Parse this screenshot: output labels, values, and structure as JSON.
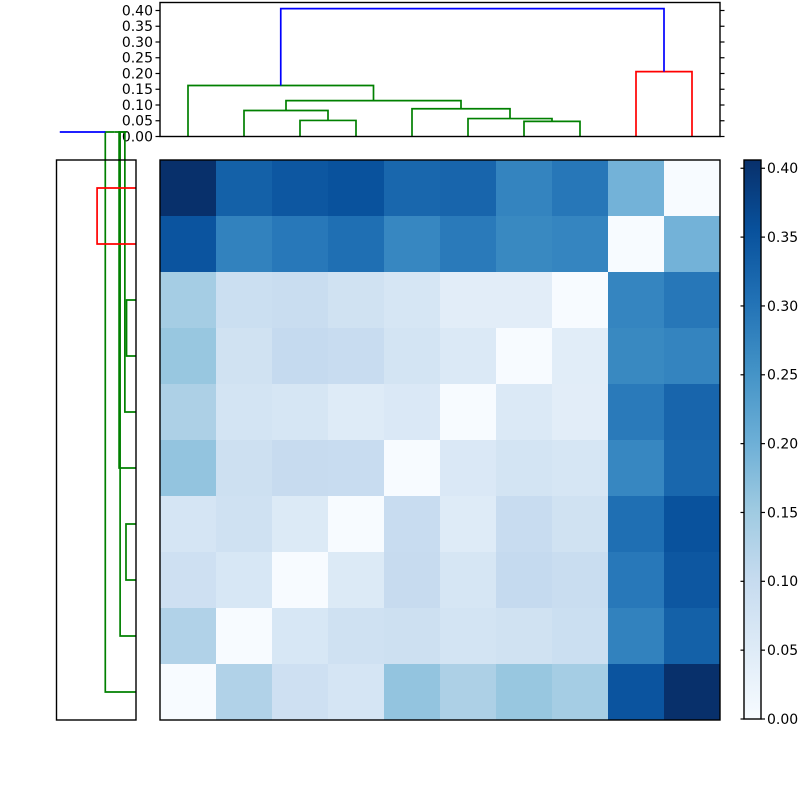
{
  "chart_data": {
    "type": "heatmap",
    "description": "Hierarchical clustering heatmap with top and left dendrograms and colorbar",
    "n_rows": 10,
    "n_cols": 10,
    "col_leaf_order": [
      0,
      1,
      2,
      3,
      4,
      5,
      6,
      7,
      8,
      9
    ],
    "row_leaf_order": [
      9,
      8,
      7,
      6,
      5,
      4,
      3,
      2,
      1,
      0
    ],
    "vmin": 0.0,
    "vmax": 0.406,
    "values": [
      [
        0.406,
        0.33,
        0.345,
        0.353,
        0.32,
        0.323,
        0.275,
        0.295,
        0.195,
        0.0
      ],
      [
        0.35,
        0.278,
        0.293,
        0.308,
        0.27,
        0.29,
        0.268,
        0.273,
        0.0,
        0.195
      ],
      [
        0.143,
        0.09,
        0.095,
        0.08,
        0.068,
        0.043,
        0.043,
        0.0,
        0.273,
        0.295
      ],
      [
        0.158,
        0.08,
        0.103,
        0.098,
        0.073,
        0.058,
        0.0,
        0.045,
        0.268,
        0.275
      ],
      [
        0.133,
        0.073,
        0.068,
        0.05,
        0.06,
        0.0,
        0.058,
        0.043,
        0.29,
        0.323
      ],
      [
        0.163,
        0.086,
        0.1,
        0.098,
        0.0,
        0.06,
        0.073,
        0.068,
        0.27,
        0.32
      ],
      [
        0.07,
        0.083,
        0.055,
        0.0,
        0.098,
        0.05,
        0.098,
        0.08,
        0.308,
        0.353
      ],
      [
        0.085,
        0.065,
        0.0,
        0.055,
        0.1,
        0.068,
        0.103,
        0.095,
        0.293,
        0.345
      ],
      [
        0.128,
        0.0,
        0.065,
        0.083,
        0.086,
        0.073,
        0.08,
        0.09,
        0.278,
        0.33
      ],
      [
        0.0,
        0.128,
        0.085,
        0.07,
        0.163,
        0.133,
        0.158,
        0.143,
        0.35,
        0.406
      ]
    ],
    "colormap": {
      "name": "Blues",
      "anchors": [
        [
          0.0,
          "#f7fbff"
        ],
        [
          0.125,
          "#deebf7"
        ],
        [
          0.25,
          "#c6dbef"
        ],
        [
          0.375,
          "#9ecae1"
        ],
        [
          0.5,
          "#6baed6"
        ],
        [
          0.625,
          "#4292c6"
        ],
        [
          0.75,
          "#2171b5"
        ],
        [
          0.875,
          "#08519c"
        ],
        [
          1.0,
          "#08306b"
        ]
      ]
    },
    "dendrogram": {
      "n_leaves": 10,
      "merges": [
        {
          "a": 6,
          "b": 7,
          "height": 0.048,
          "color": "g"
        },
        {
          "a": 5,
          "b": 10,
          "height": 0.057,
          "color": "g"
        },
        {
          "a": 4,
          "b": 11,
          "height": 0.088,
          "color": "g"
        },
        {
          "a": 2,
          "b": 3,
          "height": 0.051,
          "color": "g"
        },
        {
          "a": 1,
          "b": 13,
          "height": 0.0825,
          "color": "g"
        },
        {
          "a": 14,
          "b": 12,
          "height": 0.114,
          "color": "g"
        },
        {
          "a": 0,
          "b": 15,
          "height": 0.162,
          "color": "g"
        },
        {
          "a": 8,
          "b": 9,
          "height": 0.206,
          "color": "r"
        },
        {
          "a": 16,
          "b": 17,
          "height": 0.406,
          "color": "b"
        }
      ],
      "link_colors": {
        "b": "#0000ff",
        "g": "#008000",
        "r": "#ff0000"
      }
    },
    "top_axis_ticks": {
      "values": [
        0.4,
        0.35,
        0.3,
        0.25,
        0.2,
        0.15,
        0.1,
        0.05,
        0.0
      ],
      "labels": [
        "0.40",
        "0.35",
        "0.30",
        "0.25",
        "0.20",
        "0.15",
        "0.10",
        "0.05",
        "0.00"
      ]
    },
    "colorbar_ticks": {
      "values": [
        0.4,
        0.35,
        0.3,
        0.25,
        0.2,
        0.15,
        0.1,
        0.05,
        0.0
      ],
      "labels": [
        "0.40",
        "0.35",
        "0.30",
        "0.25",
        "0.20",
        "0.15",
        "0.10",
        "0.05",
        "0.00"
      ]
    },
    "axis_color": "#000000",
    "background_color": "#ffffff"
  }
}
